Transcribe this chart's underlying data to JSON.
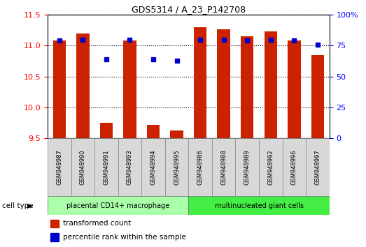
{
  "title": "GDS5314 / A_23_P142708",
  "samples": [
    "GSM948987",
    "GSM948990",
    "GSM948991",
    "GSM948993",
    "GSM948994",
    "GSM948995",
    "GSM948986",
    "GSM948988",
    "GSM948989",
    "GSM948992",
    "GSM948996",
    "GSM948997"
  ],
  "transformed_count": [
    11.08,
    11.2,
    9.75,
    11.08,
    9.72,
    9.63,
    11.3,
    11.27,
    11.15,
    11.23,
    11.08,
    10.85
  ],
  "percentile_rank": [
    79,
    80,
    64,
    80,
    64,
    63,
    80,
    80,
    79,
    80,
    79,
    76
  ],
  "groups": [
    {
      "label": "placental CD14+ macrophage",
      "indices": [
        0,
        1,
        2,
        3,
        4,
        5
      ],
      "color": "#aaffaa"
    },
    {
      "label": "multinucleated giant cells",
      "indices": [
        6,
        7,
        8,
        9,
        10,
        11
      ],
      "color": "#44ee44"
    }
  ],
  "cell_type_label": "cell type",
  "ylim_left": [
    9.5,
    11.5
  ],
  "ylim_right": [
    0,
    100
  ],
  "yticks_left": [
    9.5,
    10.0,
    10.5,
    11.0,
    11.5
  ],
  "yticks_right": [
    0,
    25,
    50,
    75,
    100
  ],
  "bar_color": "#cc2200",
  "dot_color": "#0000cc",
  "bar_width": 0.55,
  "plot_bg_color": "#ffffff",
  "legend_items": [
    {
      "label": "transformed count",
      "color": "#cc2200"
    },
    {
      "label": "percentile rank within the sample",
      "color": "#0000cc"
    }
  ]
}
